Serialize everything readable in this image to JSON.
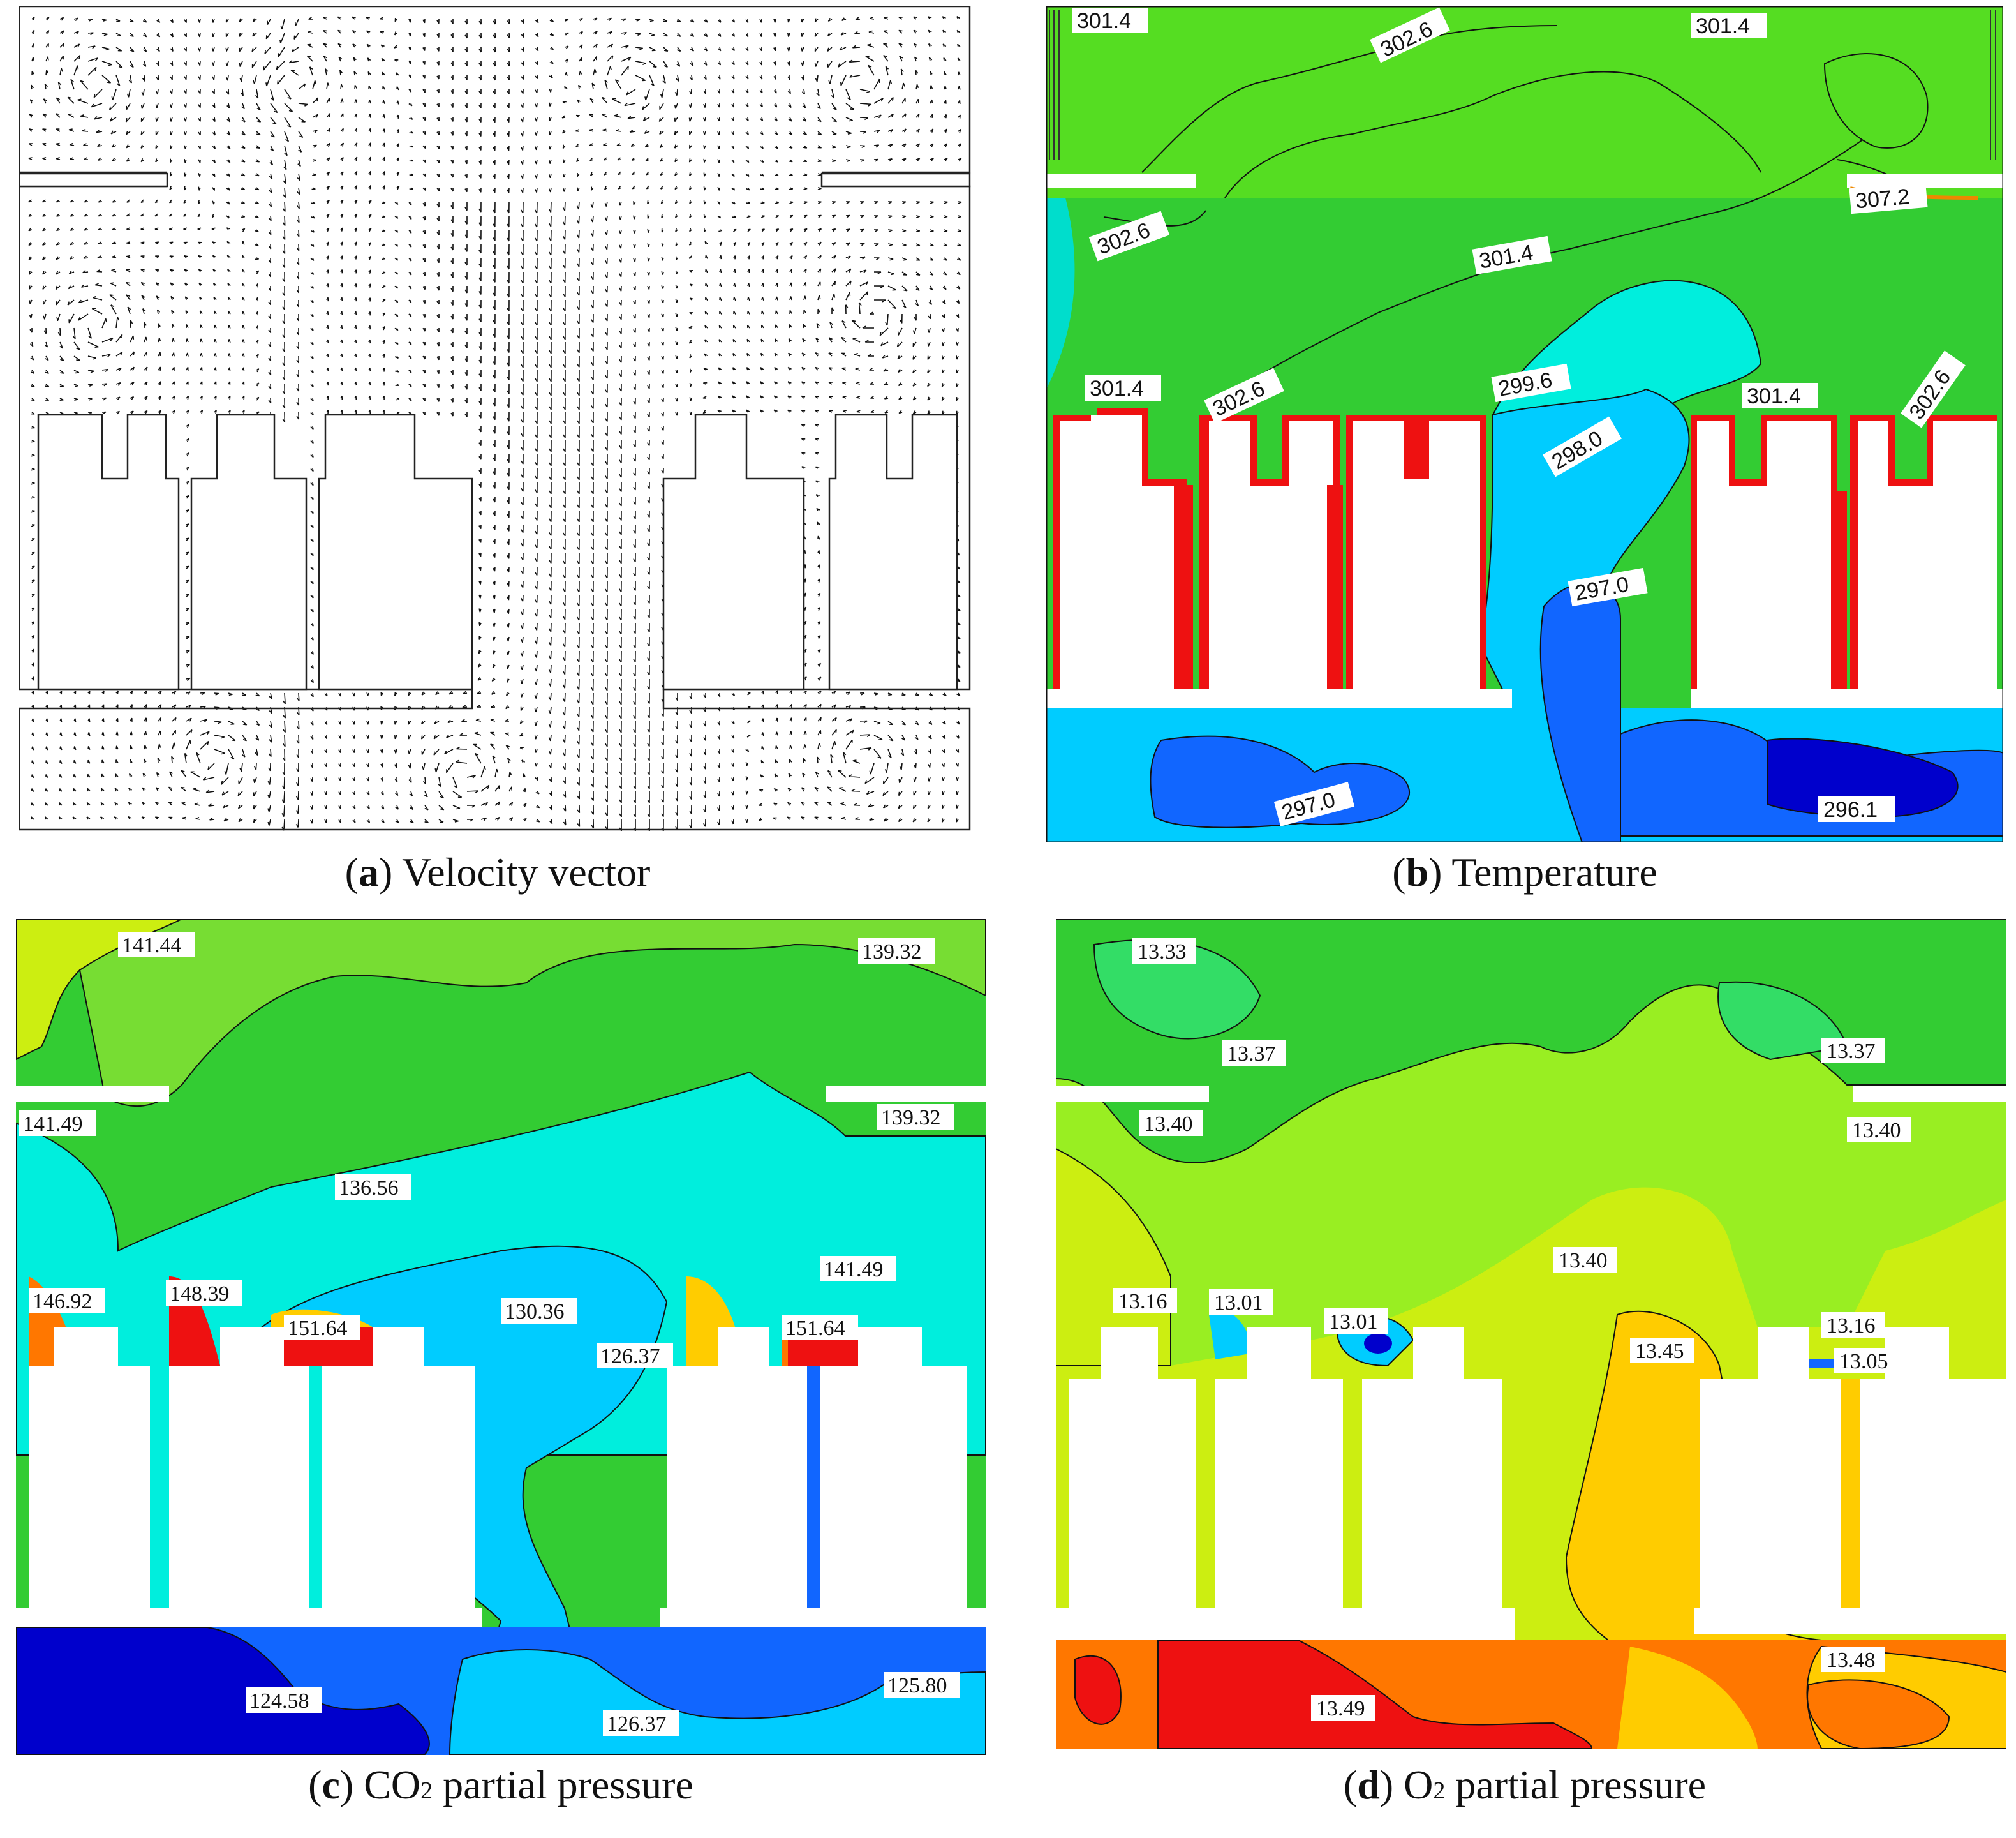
{
  "panels": [
    {
      "id": "a",
      "letter": "a",
      "title": "Velocity vector"
    },
    {
      "id": "b",
      "letter": "b",
      "title": "Temperature",
      "labels": [
        "301.4",
        "302.6",
        "301.4",
        "307.2",
        "302.6",
        "301.4",
        "299.6",
        "301.4",
        "302.6",
        "298.0",
        "302.6",
        "301.4",
        "297.0",
        "297.0",
        "296.1"
      ]
    },
    {
      "id": "c",
      "letter": "c",
      "title_pre": "CO",
      "title_sub": "2",
      "title_post": " partial pressure",
      "labels": [
        "141.44",
        "139.32",
        "141.49",
        "139.32",
        "136.56",
        "146.92",
        "148.39",
        "151.64",
        "130.36",
        "126.37",
        "141.49",
        "151.64",
        "124.58",
        "126.37",
        "125.80"
      ]
    },
    {
      "id": "d",
      "letter": "d",
      "title_pre": "O",
      "title_sub": "2",
      "title_post": " partial pressure",
      "labels": [
        "13.33",
        "13.37",
        "13.37",
        "13.40",
        "13.40",
        "13.16",
        "13.01",
        "13.01",
        "13.40",
        "13.16",
        "13.45",
        "13.05",
        "13.48",
        "13.49"
      ]
    }
  ],
  "colors": {
    "green": "#33cc33",
    "light_green": "#99ee22",
    "yellow_green": "#ccee11",
    "cyan": "#00eedd",
    "light_blue": "#00ccff",
    "blue": "#1166ff",
    "dark_blue": "#0000cc",
    "red": "#ee1111",
    "orange": "#ff7700",
    "yellow": "#ffcc00"
  }
}
